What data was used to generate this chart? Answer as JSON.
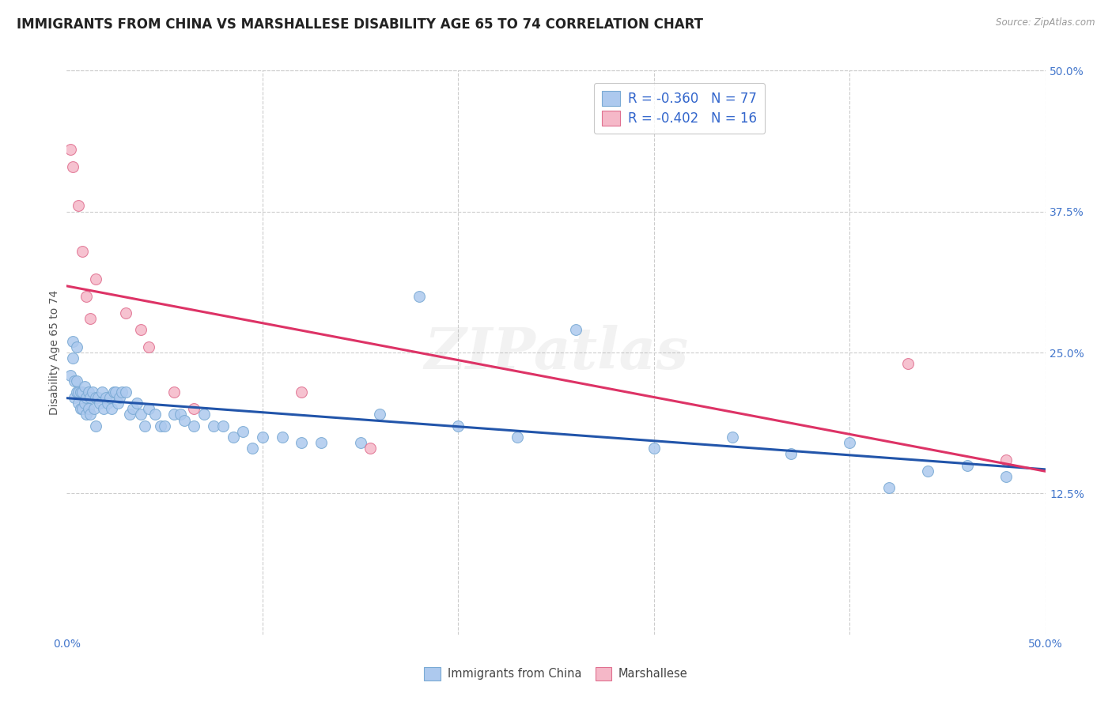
{
  "title": "IMMIGRANTS FROM CHINA VS MARSHALLESE DISABILITY AGE 65 TO 74 CORRELATION CHART",
  "source": "Source: ZipAtlas.com",
  "ylabel": "Disability Age 65 to 74",
  "xlim": [
    0.0,
    0.5
  ],
  "ylim": [
    0.0,
    0.5
  ],
  "yticks": [
    0.125,
    0.25,
    0.375,
    0.5
  ],
  "yticklabels": [
    "12.5%",
    "25.0%",
    "37.5%",
    "50.0%"
  ],
  "china_color": "#adc9ee",
  "china_edge": "#7aaad4",
  "marshallese_color": "#f5b8c8",
  "marshallese_edge": "#e07090",
  "trend_china_color": "#2255aa",
  "trend_marsh_color": "#dd3366",
  "watermark": "ZIPatlas",
  "background_color": "#ffffff",
  "grid_color": "#cccccc",
  "title_fontsize": 12,
  "axis_label_fontsize": 10,
  "tick_fontsize": 10,
  "watermark_fontsize": 52,
  "watermark_alpha": 0.1,
  "legend_label_china": "R = -0.360   N = 77",
  "legend_label_marsh": "R = -0.402   N = 16",
  "bottom_label_china": "Immigrants from China",
  "bottom_label_marsh": "Marshallese",
  "china_points_x": [
    0.002,
    0.003,
    0.003,
    0.004,
    0.004,
    0.005,
    0.005,
    0.005,
    0.006,
    0.006,
    0.007,
    0.007,
    0.008,
    0.008,
    0.009,
    0.009,
    0.01,
    0.01,
    0.011,
    0.011,
    0.012,
    0.012,
    0.013,
    0.014,
    0.015,
    0.015,
    0.016,
    0.017,
    0.018,
    0.019,
    0.02,
    0.021,
    0.022,
    0.023,
    0.024,
    0.025,
    0.026,
    0.027,
    0.028,
    0.03,
    0.032,
    0.034,
    0.036,
    0.038,
    0.04,
    0.042,
    0.045,
    0.048,
    0.05,
    0.055,
    0.058,
    0.06,
    0.065,
    0.07,
    0.075,
    0.08,
    0.085,
    0.09,
    0.095,
    0.1,
    0.11,
    0.12,
    0.13,
    0.15,
    0.16,
    0.18,
    0.2,
    0.23,
    0.26,
    0.3,
    0.34,
    0.37,
    0.4,
    0.42,
    0.44,
    0.46,
    0.48
  ],
  "china_points_y": [
    0.23,
    0.245,
    0.26,
    0.21,
    0.225,
    0.215,
    0.225,
    0.255,
    0.205,
    0.215,
    0.2,
    0.215,
    0.2,
    0.215,
    0.205,
    0.22,
    0.195,
    0.21,
    0.2,
    0.215,
    0.195,
    0.21,
    0.215,
    0.2,
    0.185,
    0.21,
    0.21,
    0.205,
    0.215,
    0.2,
    0.21,
    0.205,
    0.21,
    0.2,
    0.215,
    0.215,
    0.205,
    0.21,
    0.215,
    0.215,
    0.195,
    0.2,
    0.205,
    0.195,
    0.185,
    0.2,
    0.195,
    0.185,
    0.185,
    0.195,
    0.195,
    0.19,
    0.185,
    0.195,
    0.185,
    0.185,
    0.175,
    0.18,
    0.165,
    0.175,
    0.175,
    0.17,
    0.17,
    0.17,
    0.195,
    0.3,
    0.185,
    0.175,
    0.27,
    0.165,
    0.175,
    0.16,
    0.17,
    0.13,
    0.145,
    0.15,
    0.14
  ],
  "marsh_points_x": [
    0.002,
    0.003,
    0.006,
    0.008,
    0.01,
    0.012,
    0.015,
    0.03,
    0.038,
    0.042,
    0.055,
    0.065,
    0.12,
    0.155,
    0.43,
    0.48
  ],
  "marsh_points_y": [
    0.43,
    0.415,
    0.38,
    0.34,
    0.3,
    0.28,
    0.315,
    0.285,
    0.27,
    0.255,
    0.215,
    0.2,
    0.215,
    0.165,
    0.24,
    0.155
  ]
}
